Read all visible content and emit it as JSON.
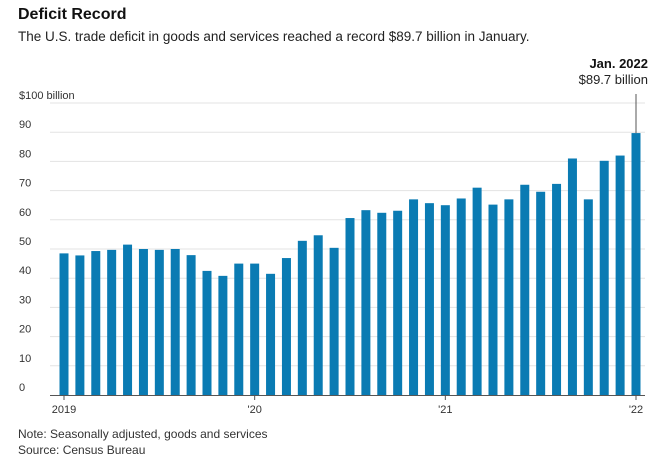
{
  "title": "Deficit Record",
  "subtitle": "The U.S. trade deficit in goods and services reached a record $89.7 billion in January.",
  "note": "Note: Seasonally adjusted, goods and services",
  "source": "Source: Census Bureau",
  "annotation": {
    "date": "Jan. 2022",
    "value": "$89.7 billion"
  },
  "colors": {
    "bar": "#0a7bb3",
    "grid": "#e3e3e3",
    "axis": "#555555"
  },
  "chart_data": {
    "type": "bar",
    "ylim": [
      0,
      100
    ],
    "y_ticks": [
      0,
      10,
      20,
      30,
      40,
      50,
      60,
      70,
      80,
      90,
      100
    ],
    "y_tick_labels": [
      "0",
      "10",
      "20",
      "30",
      "40",
      "50",
      "60",
      "70",
      "80",
      "90",
      "$100 billion"
    ],
    "x_tick_labels": [
      {
        "label": "2019",
        "index": 0
      },
      {
        "label": "'20",
        "index": 12
      },
      {
        "label": "'21",
        "index": 24
      },
      {
        "label": "'22",
        "index": 36
      }
    ],
    "categories": [
      "Jan 2019",
      "Feb 2019",
      "Mar 2019",
      "Apr 2019",
      "May 2019",
      "Jun 2019",
      "Jul 2019",
      "Aug 2019",
      "Sep 2019",
      "Oct 2019",
      "Nov 2019",
      "Dec 2019",
      "Jan 2020",
      "Feb 2020",
      "Mar 2020",
      "Apr 2020",
      "May 2020",
      "Jun 2020",
      "Jul 2020",
      "Aug 2020",
      "Sep 2020",
      "Oct 2020",
      "Nov 2020",
      "Dec 2020",
      "Jan 2021",
      "Feb 2021",
      "Mar 2021",
      "Apr 2021",
      "May 2021",
      "Jun 2021",
      "Jul 2021",
      "Aug 2021",
      "Sep 2021",
      "Oct 2021",
      "Nov 2021",
      "Dec 2021",
      "Jan 2022"
    ],
    "values": [
      48.5,
      47.8,
      49.3,
      49.7,
      51.5,
      50.0,
      49.7,
      50.0,
      47.9,
      42.5,
      40.8,
      45.0,
      45.0,
      41.5,
      46.9,
      52.8,
      54.7,
      50.4,
      60.6,
      63.3,
      62.4,
      63.1,
      67.0,
      65.7,
      65.0,
      67.3,
      71.0,
      65.2,
      67.0,
      72.0,
      69.6,
      72.3,
      81.0,
      67.0,
      80.2,
      82.0,
      89.7
    ]
  }
}
